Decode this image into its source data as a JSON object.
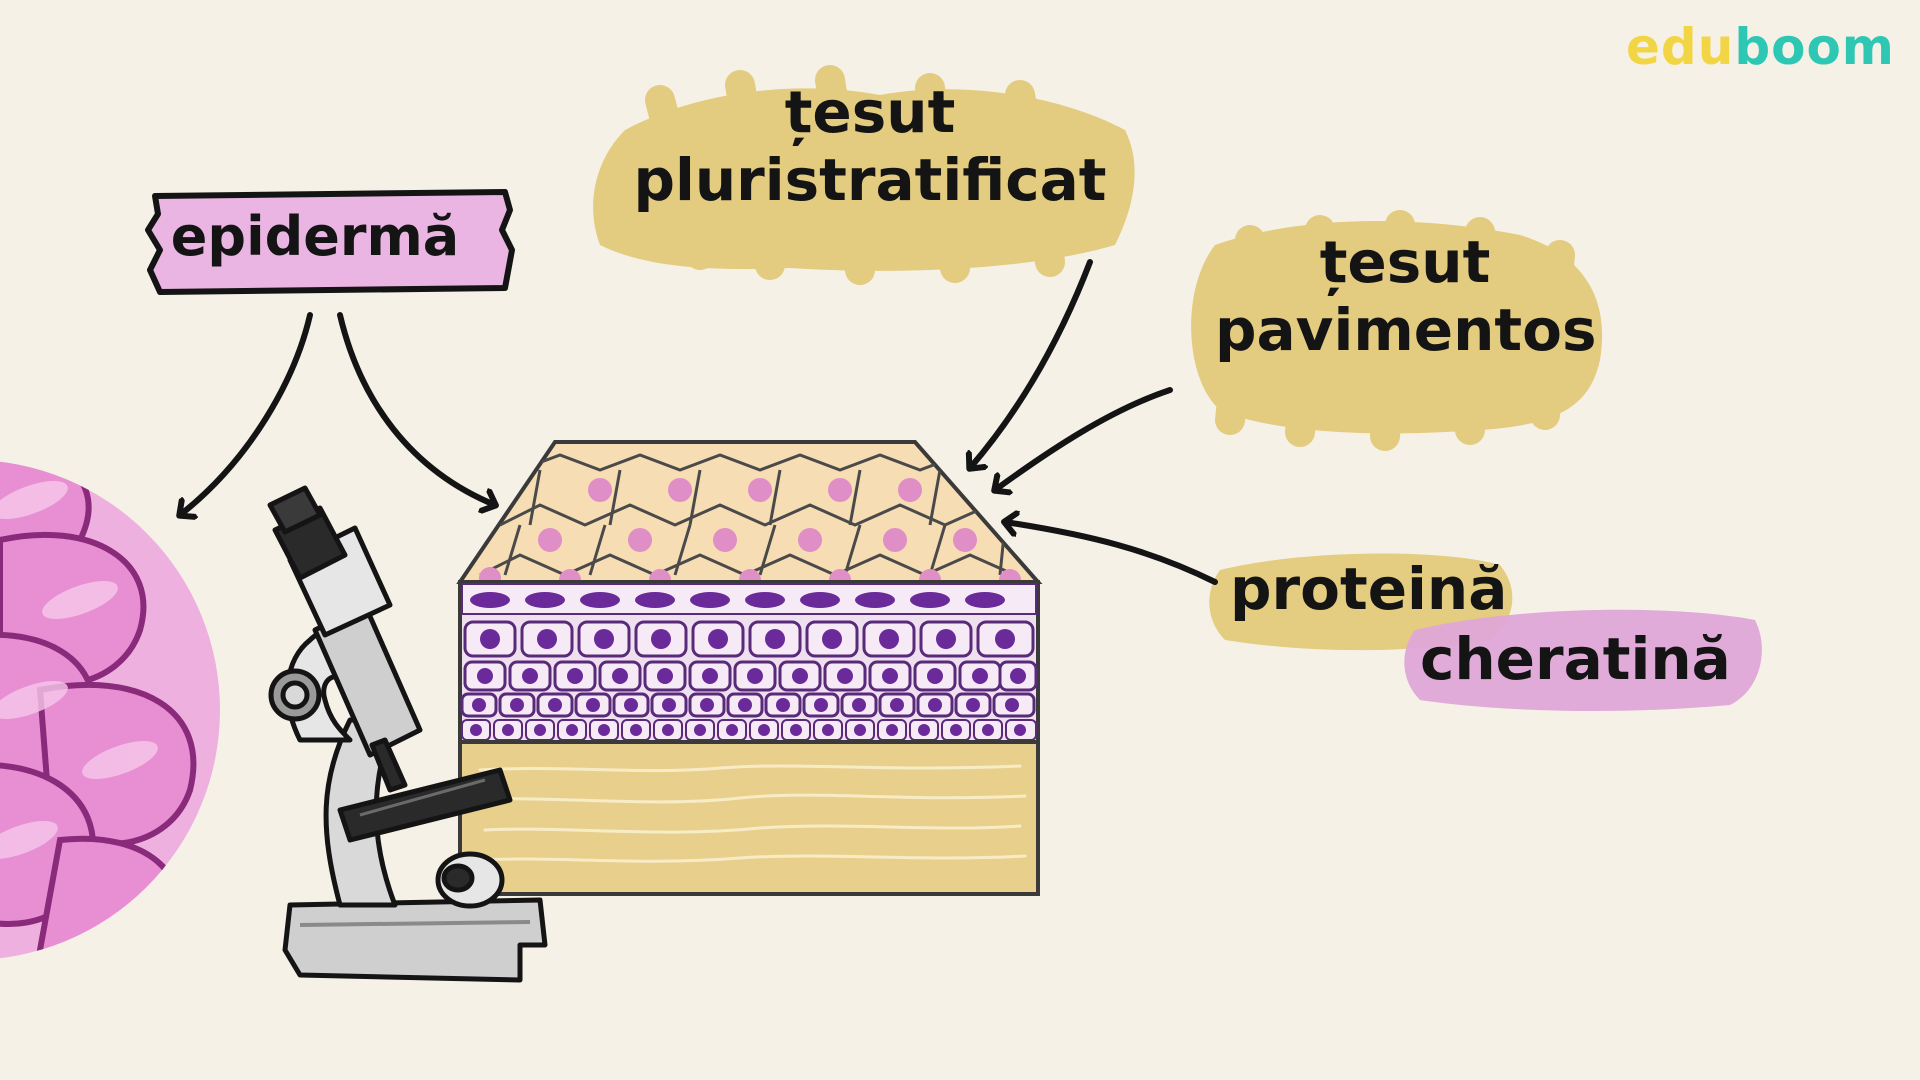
{
  "brand": {
    "logo_part1": "edu",
    "logo_part2": "boom",
    "color_part1": "#f2d545",
    "color_part2": "#2ec7b4"
  },
  "labels": {
    "epiderma": "epidermă",
    "tesut_pluristratificat_line1": "țesut",
    "tesut_pluristratificat_line2": "pluristratificat",
    "tesut_pavimentos_line1": "țesut",
    "tesut_pavimentos_line2": "pavimentos",
    "proteina": "proteină",
    "cheratina": "cheratină"
  },
  "colors": {
    "background": "#f6f1e6",
    "highlight_yellow": "#e3c97a",
    "highlight_pink": "#dea7d8",
    "cell_nucleus": "#6a2a9a",
    "top_nucleus": "#e08ec6"
  },
  "icons": [
    "microscope-icon",
    "skin-cell-magnified-icon",
    "tissue-block-icon"
  ]
}
